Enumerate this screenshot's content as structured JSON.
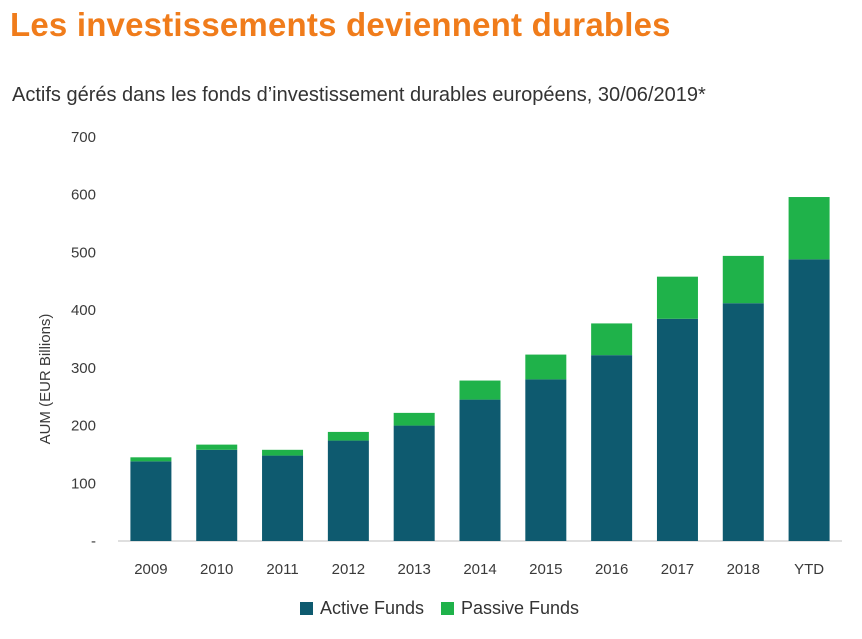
{
  "header": {
    "title": "Les investissements deviennent durables",
    "subtitle": "Actifs gérés dans les fonds d’investissement durables européens, 30/06/2019*"
  },
  "colors": {
    "title": "#f07c1b",
    "active": "#0e5a6f",
    "passive": "#1fb24a"
  },
  "chart_data": {
    "type": "bar",
    "stacked": true,
    "title": "Actifs gérés dans les fonds d’investissement durables européens, 30/06/2019*",
    "xlabel": "",
    "ylabel": "AUM (EUR Billions)",
    "ylim": [
      0,
      700
    ],
    "yticks": [
      0,
      100,
      200,
      300,
      400,
      500,
      600,
      700
    ],
    "ytick_labels": [
      "-",
      "100",
      "200",
      "300",
      "400",
      "500",
      "600",
      "700"
    ],
    "categories": [
      "2009",
      "2010",
      "2011",
      "2012",
      "2013",
      "2014",
      "2015",
      "2016",
      "2017",
      "2018",
      "YTD"
    ],
    "series": [
      {
        "name": "Active Funds",
        "values": [
          138,
          158,
          148,
          174,
          200,
          245,
          280,
          322,
          385,
          412,
          488
        ]
      },
      {
        "name": "Passive Funds",
        "values": [
          7,
          9,
          10,
          15,
          22,
          33,
          43,
          55,
          73,
          82,
          108
        ]
      }
    ],
    "legend": [
      "Active Funds",
      "Passive Funds"
    ],
    "legend_position": "bottom-center",
    "grid": false
  }
}
